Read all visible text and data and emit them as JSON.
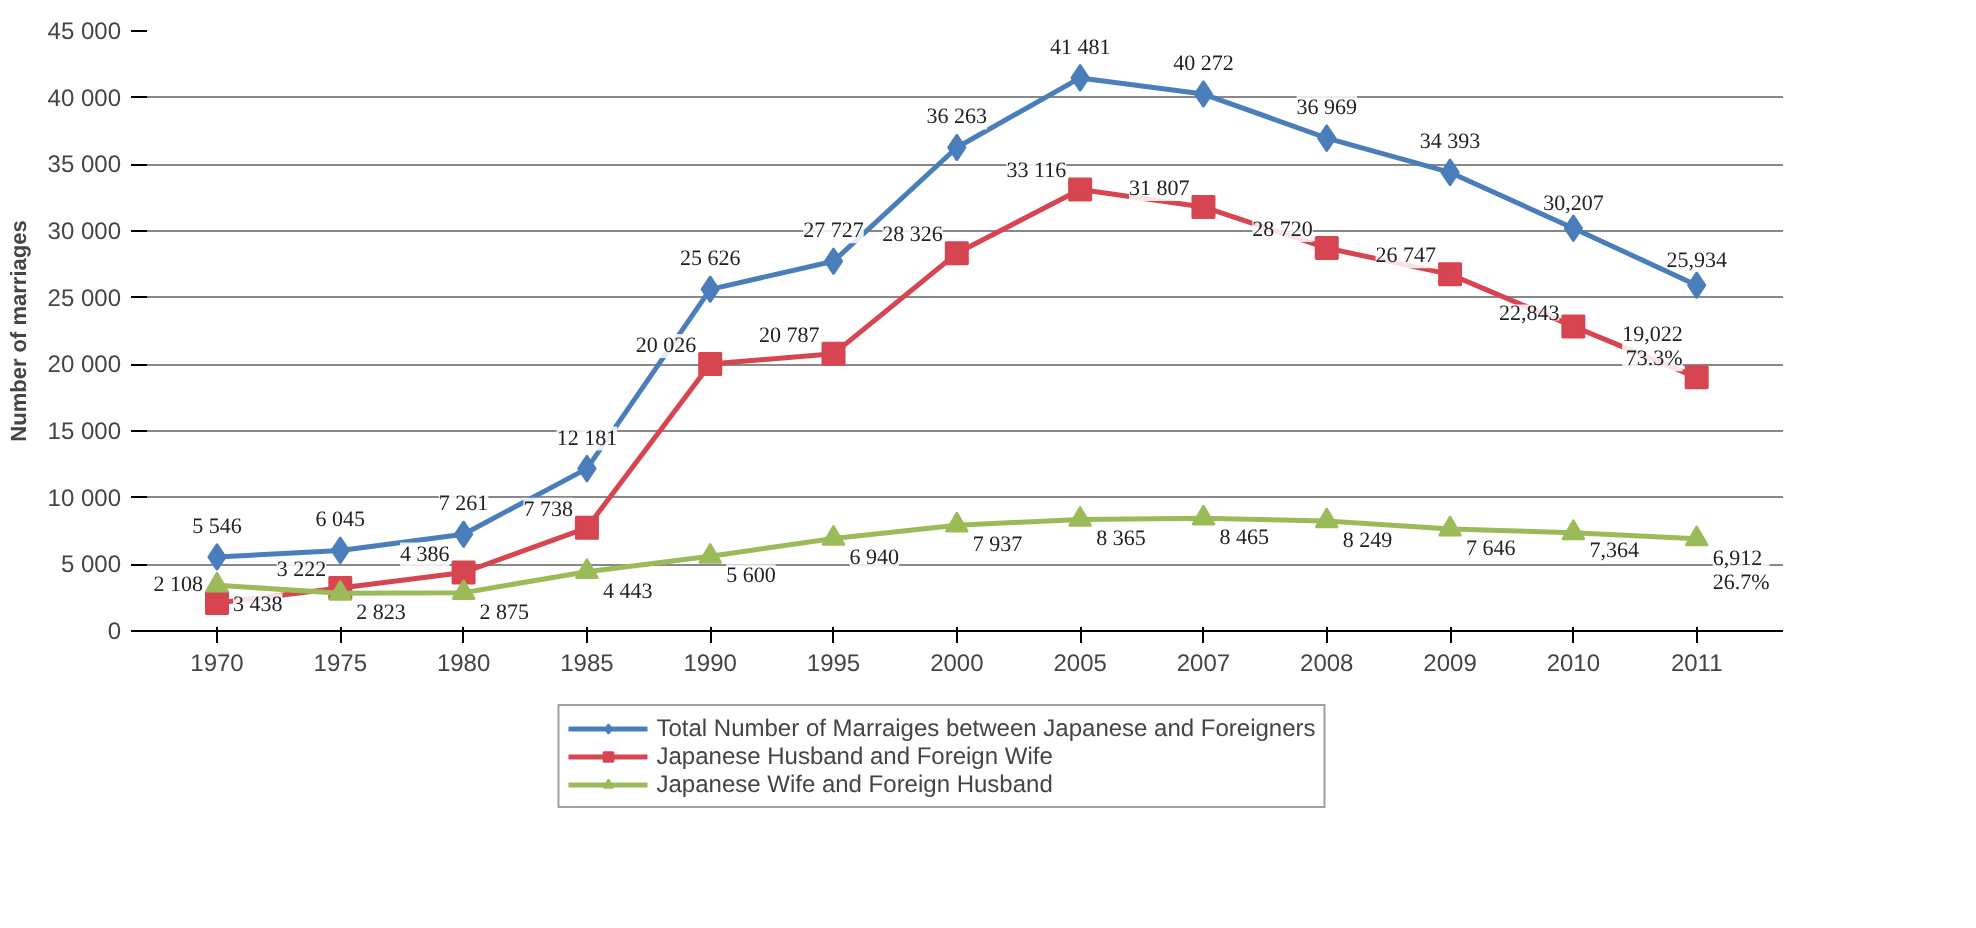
{
  "chart_data": {
    "type": "line",
    "ylabel": "Number of marriages",
    "categories": [
      "1970",
      "1975",
      "1980",
      "1985",
      "1990",
      "1995",
      "2000",
      "2005",
      "2007",
      "2008",
      "2009",
      "2010",
      "2011"
    ],
    "series": [
      {
        "name": "Total Number of Marraiges between Japanese and Foreigners",
        "color": "#4a7ebb",
        "marker": "diamond",
        "values": [
          5546,
          6045,
          7261,
          12181,
          25626,
          27727,
          36263,
          41481,
          40272,
          36969,
          34393,
          30207,
          25934
        ],
        "value_labels": [
          "5 546",
          "6 045",
          "7 261",
          "12 181",
          "25 626",
          "27 727",
          "36 263",
          "41 481",
          "40 272",
          "36 969",
          "34 393",
          "30,207",
          "25,934"
        ]
      },
      {
        "name": "Japanese Husband and Foreign Wife",
        "color": "#d64550",
        "marker": "square",
        "values": [
          2108,
          3222,
          4386,
          7738,
          20026,
          20787,
          28326,
          33116,
          31807,
          28720,
          26747,
          22843,
          19022
        ],
        "value_labels": [
          "2 108",
          "3 222",
          "4 386",
          "7 738",
          "20 026",
          "20 787",
          "28 326",
          "33 116",
          "31 807",
          "28 720",
          "26 747",
          "22,843",
          "19,022\n73.3%"
        ]
      },
      {
        "name": "Japanese Wife and Foreign Husband",
        "color": "#9bbb59",
        "marker": "triangle",
        "values": [
          3438,
          2823,
          2875,
          4443,
          5600,
          6940,
          7937,
          8365,
          8465,
          8249,
          7646,
          7364,
          6912
        ],
        "value_labels": [
          "3 438",
          "2 823",
          "2 875",
          "4 443",
          "5 600",
          "6 940",
          "7 937",
          "8 365",
          "8 465",
          "8 249",
          "7 646",
          "7,364",
          "6,912\n26.7%"
        ]
      }
    ],
    "ylim": [
      0,
      45000
    ],
    "yticks": [
      0,
      {
        "value": 5000,
        "label": "5 000"
      },
      {
        "value": 10000,
        "label": "10 000"
      },
      {
        "value": 15000,
        "label": "15 000"
      },
      {
        "value": 20000,
        "label": "20 000"
      },
      {
        "value": 25000,
        "label": "25 000"
      },
      {
        "value": 30000,
        "label": "30 000"
      },
      {
        "value": 35000,
        "label": "35 000"
      },
      {
        "value": 40000,
        "label": "40 000"
      },
      {
        "value": 45000,
        "label": "45 000"
      }
    ],
    "grid": "y",
    "legend": "bottom",
    "line_style": "solid"
  }
}
